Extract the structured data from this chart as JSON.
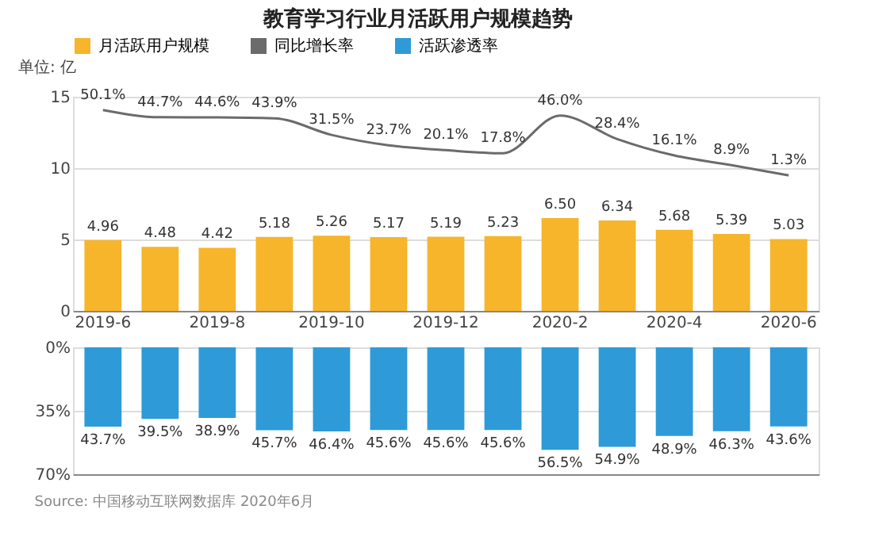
{
  "chart_data": [
    {
      "type": "bar",
      "title": "教育学习行业月活跃用户规模趋势",
      "ylabel": "单位: 亿",
      "categories": [
        "2019-6",
        null,
        "2019-8",
        null,
        "2019-10",
        null,
        "2019-12",
        null,
        "2020-2",
        null,
        "2020-4",
        null,
        "2020-6"
      ],
      "series": [
        {
          "name": "月活跃用户规模",
          "color": "#f6b52a",
          "values": [
            4.96,
            4.48,
            4.42,
            5.18,
            5.26,
            5.17,
            5.19,
            5.23,
            6.5,
            6.34,
            5.68,
            5.39,
            5.03
          ],
          "value_labels": [
            "4.96",
            "4.48",
            "4.42",
            "5.18",
            "5.26",
            "5.17",
            "5.19",
            "5.23",
            "6.50",
            "6.34",
            "5.68",
            "5.39",
            "5.03"
          ]
        },
        {
          "name": "同比增长率",
          "type": "line",
          "axis": "y2",
          "color": "#6b6b6b",
          "values": [
            50.1,
            44.7,
            44.6,
            43.9,
            31.5,
            23.7,
            20.1,
            17.8,
            46.0,
            28.4,
            16.1,
            8.9,
            1.3
          ],
          "value_labels": [
            "50.1%",
            "44.7%",
            "44.6%",
            "43.9%",
            "31.5%",
            "23.7%",
            "20.1%",
            "17.8%",
            "46.0%",
            "28.4%",
            "16.1%",
            "8.9%",
            "1.3%"
          ]
        }
      ],
      "ylim": [
        0,
        15
      ],
      "yticks": [
        0,
        5,
        10,
        15
      ],
      "y2lim": [
        -100,
        60
      ],
      "grid": "y",
      "legend": "top"
    },
    {
      "type": "bar",
      "categories": [
        "2019-6",
        null,
        "2019-8",
        null,
        "2019-10",
        null,
        "2019-12",
        null,
        "2020-2",
        null,
        "2020-4",
        null,
        "2020-6"
      ],
      "series": [
        {
          "name": "活跃渗透率",
          "color": "#2e9ad8",
          "values": [
            43.7,
            39.5,
            38.9,
            45.7,
            46.4,
            45.6,
            45.6,
            45.6,
            56.5,
            54.9,
            48.9,
            46.3,
            43.6
          ],
          "value_labels": [
            "43.7%",
            "39.5%",
            "38.9%",
            "45.7%",
            "46.4%",
            "45.6%",
            "45.6%",
            "45.6%",
            "56.5%",
            "54.9%",
            "48.9%",
            "46.3%",
            "43.6%"
          ]
        }
      ],
      "ylim": [
        70,
        0
      ],
      "yticks": [
        {
          "value": 0,
          "label": "0%"
        },
        {
          "value": 35,
          "label": "35%"
        },
        {
          "value": 70,
          "label": "70%"
        }
      ],
      "grid": "y",
      "legend": "top",
      "tick_labels": "y",
      "annotations": [
        "Source: 中国移动互联网数据库 2020年6月"
      ]
    }
  ]
}
